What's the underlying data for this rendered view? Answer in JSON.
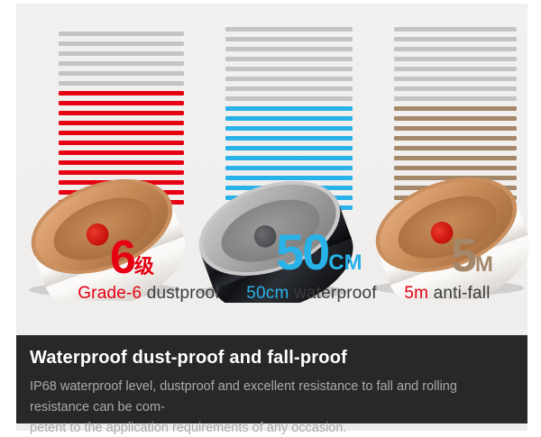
{
  "page": {
    "background": "#ffffff",
    "panel_background": "#efeeec"
  },
  "columns": [
    {
      "id": "dustproof",
      "stripe_gray_count": 6,
      "stripe_color_count": 12,
      "stripe_gray": "#c4c4c4",
      "stripe_color": "#e60012",
      "metric_value": "6",
      "metric_unit": "级",
      "metric_color": "#e60012",
      "caption_highlight": "Grade-6",
      "caption_rest": " dustproof",
      "caption_highlight_color": "#e60012",
      "ring_style": "white ceramic band, rose-gold copper inner face, red button dot"
    },
    {
      "id": "waterproof",
      "stripe_gray_count": 8,
      "stripe_color_count": 11,
      "stripe_gray": "#c4c4c4",
      "stripe_color": "#29b2e8",
      "metric_value": "50",
      "metric_unit": "CM",
      "metric_color": "#29b2e8",
      "caption_highlight": "50cm",
      "caption_rest": " waterproof",
      "caption_highlight_color": "#29b2e8",
      "ring_style": "glossy black band, brushed steel inner face, dark button dot"
    },
    {
      "id": "anti-fall",
      "stripe_gray_count": 8,
      "stripe_color_count": 10,
      "stripe_gray": "#c4c4c4",
      "stripe_color": "#a5876a",
      "metric_value": "5",
      "metric_unit": "M",
      "metric_color": "#a5876a",
      "caption_highlight": "5m",
      "caption_rest": " anti-fall",
      "caption_highlight_color": "#e60012",
      "ring_style": "white ceramic band, rose-gold copper inner face, red button dot"
    }
  ],
  "banner": {
    "title": "Waterproof dust-proof and fall-proof",
    "body_line1": "IP68 waterproof level, dustproof and excellent resistance to fall and rolling resistance can be com-",
    "body_line2": "petent to the application requirements of any occasion.",
    "background": "#282828",
    "title_color": "#ffffff",
    "body_color": "#a9a9a9"
  }
}
